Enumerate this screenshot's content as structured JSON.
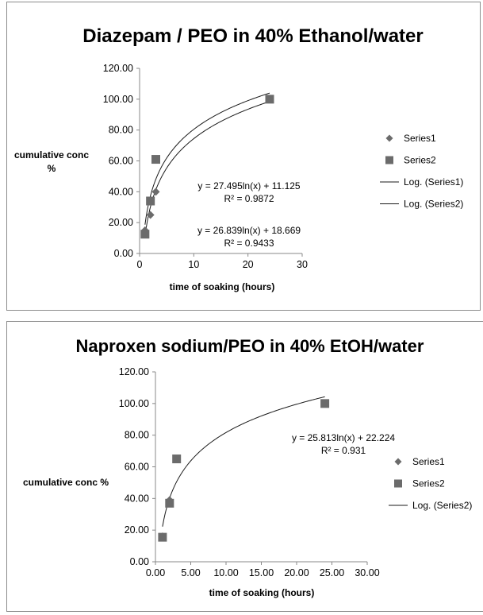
{
  "chart_data": [
    {
      "type": "scatter",
      "title": "Diazepam / PEO  in 40% Ethanol/water",
      "xlabel": "time of soaking (hours)",
      "ylabel": "cumulative conc %",
      "xlim": [
        0,
        30
      ],
      "ylim": [
        0,
        120
      ],
      "xticks": [
        "0",
        "10",
        "20",
        "30"
      ],
      "yticks": [
        "0.00",
        "20.00",
        "40.00",
        "60.00",
        "80.00",
        "100.00",
        "120.00"
      ],
      "grid": false,
      "legend_position": "right",
      "series": [
        {
          "name": "Series1",
          "marker": "diamond",
          "color": "#6b6b6b",
          "points": [
            [
              1,
              15
            ],
            [
              2,
              25
            ],
            [
              3,
              40
            ],
            [
              24,
              100
            ]
          ]
        },
        {
          "name": "Series2",
          "marker": "square",
          "color": "#6b6b6b",
          "points": [
            [
              1,
              12.5
            ],
            [
              2,
              34
            ],
            [
              3,
              61
            ],
            [
              24,
              100
            ]
          ]
        }
      ],
      "trendlines": [
        {
          "name": "Log. (Series1)",
          "a": 27.495,
          "b": 11.125,
          "equation": "y = 27.495ln(x) + 11.125",
          "r2": "R² = 0.9872"
        },
        {
          "name": "Log. (Series2)",
          "a": 26.839,
          "b": 18.669,
          "equation": "y = 26.839ln(x) + 18.669",
          "r2": "R² = 0.9433"
        }
      ]
    },
    {
      "type": "scatter",
      "title": "Naproxen sodium/PEO in 40% EtOH/water",
      "xlabel": "time of soaking (hours)",
      "ylabel": "cumulative conc %",
      "xlim": [
        0,
        30
      ],
      "ylim": [
        0,
        120
      ],
      "xticks": [
        "0.00",
        "5.00",
        "10.00",
        "15.00",
        "20.00",
        "25.00",
        "30.00"
      ],
      "yticks": [
        "0.00",
        "20.00",
        "40.00",
        "60.00",
        "80.00",
        "100.00",
        "120.00"
      ],
      "grid": false,
      "legend_position": "right",
      "series": [
        {
          "name": "Series1",
          "marker": "diamond",
          "color": "#6b6b6b",
          "points": [
            [
              1,
              16
            ],
            [
              2,
              39
            ],
            [
              3,
              65
            ],
            [
              24,
              100
            ]
          ]
        },
        {
          "name": "Series2",
          "marker": "square",
          "color": "#6b6b6b",
          "points": [
            [
              1,
              15.5
            ],
            [
              2,
              37
            ],
            [
              3,
              65
            ],
            [
              24,
              100
            ]
          ]
        }
      ],
      "trendlines": [
        {
          "name": "Log. (Series2)",
          "a": 25.813,
          "b": 22.224,
          "equation": "y = 25.813ln(x) + 22.224",
          "r2": "R² = 0.931"
        }
      ]
    }
  ]
}
